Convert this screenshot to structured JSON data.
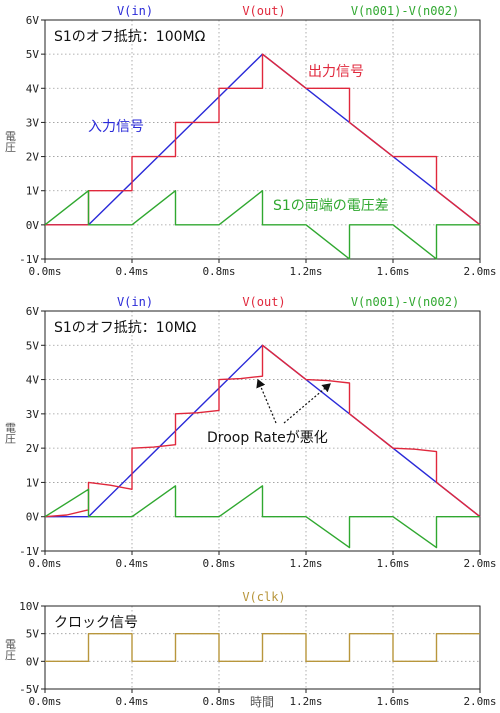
{
  "chart_data": [
    {
      "type": "line",
      "annotation_box": "S1のオフ抵抗：100MΩ",
      "labels": {
        "input": "入力信号",
        "output": "出力信号",
        "diff": "S1の両端の電圧差"
      },
      "xlabel": "",
      "ylabel": "電圧",
      "xlim": [
        0,
        2.0
      ],
      "ylim": [
        -1,
        6
      ],
      "x_ticks": [
        "0.0ms",
        "0.4ms",
        "0.8ms",
        "1.2ms",
        "1.6ms",
        "2.0ms"
      ],
      "y_ticks": [
        "-1V",
        "0V",
        "1V",
        "2V",
        "3V",
        "4V",
        "5V",
        "6V"
      ],
      "grid": true,
      "legend_position": "top",
      "series": [
        {
          "name": "V(in)",
          "color": "#2a2ad8",
          "points": [
            [
              0,
              0
            ],
            [
              0.2,
              0
            ],
            [
              1.0,
              5
            ],
            [
              2.0,
              0
            ]
          ]
        },
        {
          "name": "V(out)",
          "color": "#e0283c",
          "points": [
            [
              0,
              0
            ],
            [
              0.2,
              0
            ],
            [
              0.2,
              1
            ],
            [
              0.4,
              1
            ],
            [
              0.4,
              2
            ],
            [
              0.6,
              2
            ],
            [
              0.6,
              3
            ],
            [
              0.8,
              3
            ],
            [
              0.8,
              4
            ],
            [
              1.0,
              4
            ],
            [
              1.0,
              5
            ],
            [
              1.2,
              4
            ],
            [
              1.4,
              4
            ],
            [
              1.4,
              3
            ],
            [
              1.6,
              2
            ],
            [
              1.8,
              2
            ],
            [
              1.8,
              1
            ],
            [
              2.0,
              0
            ]
          ]
        },
        {
          "name": "V(n001)-V(n002)",
          "color": "#30a830",
          "points": [
            [
              0,
              0
            ],
            [
              0.2,
              1
            ],
            [
              0.2,
              0
            ],
            [
              0.4,
              0
            ],
            [
              0.6,
              1
            ],
            [
              0.6,
              0
            ],
            [
              0.8,
              0
            ],
            [
              1.0,
              1
            ],
            [
              1.0,
              0
            ],
            [
              1.2,
              0
            ],
            [
              1.4,
              -1
            ],
            [
              1.4,
              0
            ],
            [
              1.6,
              0
            ],
            [
              1.8,
              -1
            ],
            [
              1.8,
              0
            ],
            [
              2.0,
              0
            ]
          ]
        }
      ]
    },
    {
      "type": "line",
      "annotation_box": "S1のオフ抵抗：10MΩ",
      "labels": {
        "droop": "Droop Rateが悪化"
      },
      "xlabel": "",
      "ylabel": "電圧",
      "xlim": [
        0,
        2.0
      ],
      "ylim": [
        -1,
        6
      ],
      "x_ticks": [
        "0.0ms",
        "0.4ms",
        "0.8ms",
        "1.2ms",
        "1.6ms",
        "2.0ms"
      ],
      "y_ticks": [
        "-1V",
        "0V",
        "1V",
        "2V",
        "3V",
        "4V",
        "5V",
        "6V"
      ],
      "grid": true,
      "legend_position": "top",
      "series": [
        {
          "name": "V(in)",
          "color": "#2a2ad8",
          "points": [
            [
              0,
              0
            ],
            [
              0.2,
              0
            ],
            [
              1.0,
              5
            ],
            [
              2.0,
              0
            ]
          ]
        },
        {
          "name": "V(out)",
          "color": "#e0283c",
          "points": [
            [
              0,
              0
            ],
            [
              0.1,
              0.05
            ],
            [
              0.2,
              0.2
            ],
            [
              0.2,
              1
            ],
            [
              0.3,
              0.92
            ],
            [
              0.4,
              0.8
            ],
            [
              0.4,
              2
            ],
            [
              0.5,
              2.03
            ],
            [
              0.6,
              2.1
            ],
            [
              0.6,
              3
            ],
            [
              0.7,
              3.03
            ],
            [
              0.8,
              3.1
            ],
            [
              0.8,
              4
            ],
            [
              0.9,
              4.03
            ],
            [
              1.0,
              4.1
            ],
            [
              1.0,
              5
            ],
            [
              1.2,
              4
            ],
            [
              1.3,
              3.97
            ],
            [
              1.4,
              3.9
            ],
            [
              1.4,
              3
            ],
            [
              1.6,
              2
            ],
            [
              1.7,
              1.97
            ],
            [
              1.8,
              1.9
            ],
            [
              1.8,
              1
            ],
            [
              2.0,
              0
            ]
          ]
        },
        {
          "name": "V(n001)-V(n002)",
          "color": "#30a830",
          "points": [
            [
              0,
              0
            ],
            [
              0.2,
              0.8
            ],
            [
              0.2,
              0
            ],
            [
              0.4,
              0
            ],
            [
              0.6,
              0.9
            ],
            [
              0.6,
              0
            ],
            [
              0.8,
              0
            ],
            [
              1.0,
              0.9
            ],
            [
              1.0,
              0
            ],
            [
              1.2,
              0
            ],
            [
              1.4,
              -0.9
            ],
            [
              1.4,
              0
            ],
            [
              1.6,
              0
            ],
            [
              1.8,
              -0.9
            ],
            [
              1.8,
              0
            ],
            [
              2.0,
              0
            ]
          ]
        }
      ]
    },
    {
      "type": "line",
      "annotation_box": "クロック信号",
      "xlabel": "時間",
      "ylabel": "電圧",
      "xlim": [
        0,
        2.0
      ],
      "ylim": [
        -5,
        10
      ],
      "x_ticks": [
        "0.0ms",
        "0.4ms",
        "0.8ms",
        "1.2ms",
        "1.6ms",
        "2.0ms"
      ],
      "y_ticks": [
        "-5V",
        "0V",
        "5V",
        "10V"
      ],
      "grid": true,
      "legend_position": "top",
      "series": [
        {
          "name": "V(clk)",
          "color": "#b8963c",
          "points": [
            [
              0,
              0
            ],
            [
              0.2,
              0
            ],
            [
              0.2,
              5
            ],
            [
              0.4,
              5
            ],
            [
              0.4,
              0
            ],
            [
              0.6,
              0
            ],
            [
              0.6,
              5
            ],
            [
              0.8,
              5
            ],
            [
              0.8,
              0
            ],
            [
              1.0,
              0
            ],
            [
              1.0,
              5
            ],
            [
              1.2,
              5
            ],
            [
              1.2,
              0
            ],
            [
              1.4,
              0
            ],
            [
              1.4,
              5
            ],
            [
              1.6,
              5
            ],
            [
              1.6,
              0
            ],
            [
              1.8,
              0
            ],
            [
              1.8,
              5
            ],
            [
              2.0,
              5
            ]
          ]
        }
      ]
    }
  ]
}
